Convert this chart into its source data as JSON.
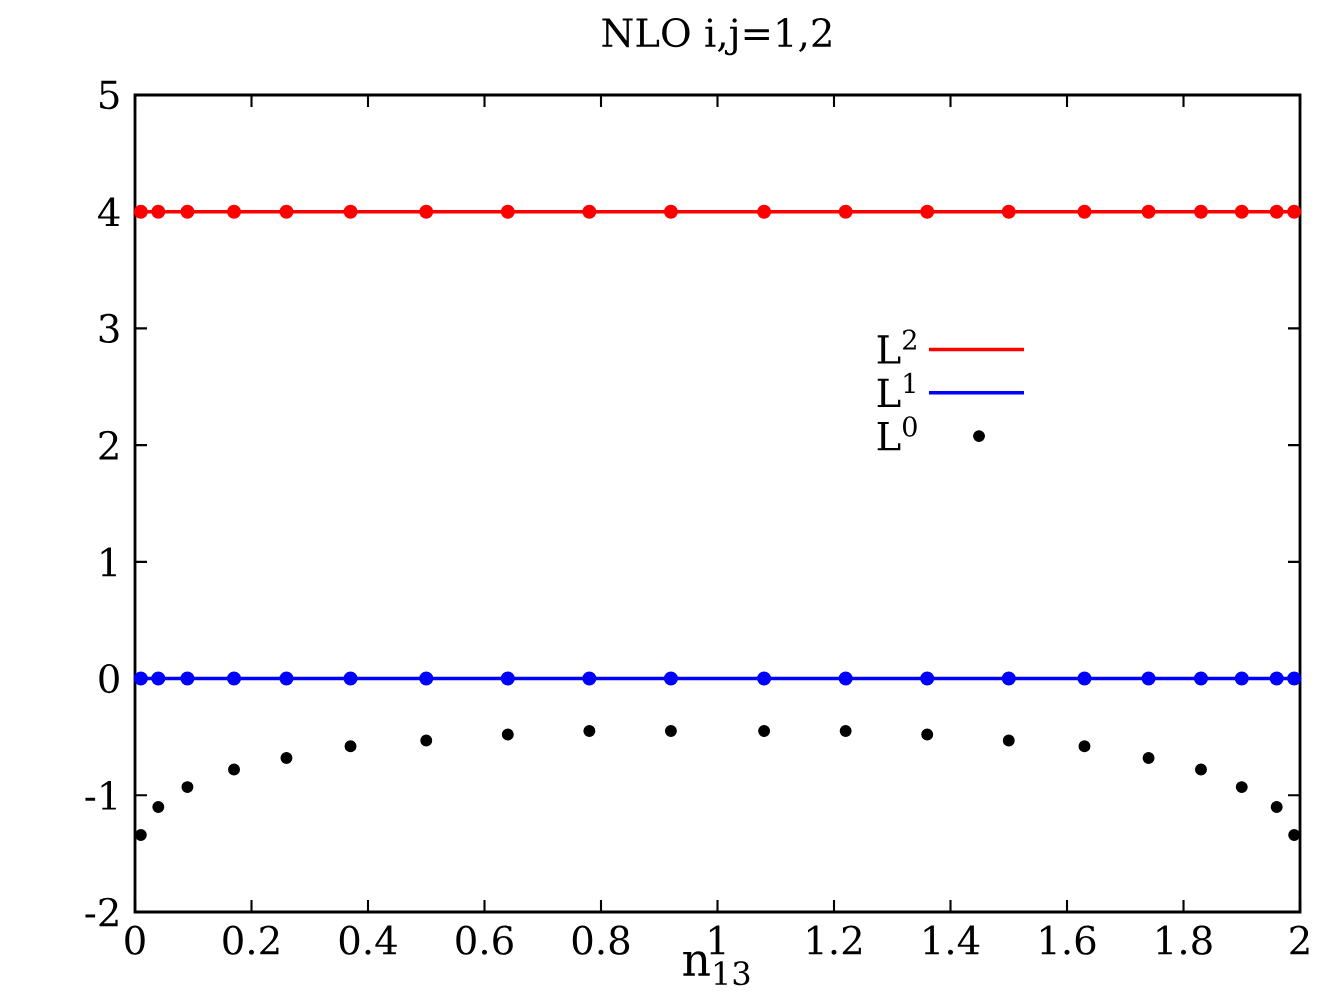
{
  "chart_data": {
    "type": "line",
    "title": "NLO i,j=1,2",
    "xlabel": "n$_{13}$",
    "xlim": [
      0,
      2
    ],
    "ylim": [
      -2,
      5
    ],
    "xticks": [
      0,
      0.2,
      0.4,
      0.6,
      0.8,
      1,
      1.2,
      1.4,
      1.6,
      1.8,
      2
    ],
    "yticks": [
      -2,
      -1,
      0,
      1,
      2,
      3,
      4,
      5
    ],
    "grid": false,
    "legend": "right",
    "series": [
      {
        "name": "L$^{2}$",
        "color": "#ff0000",
        "marker": "circle",
        "line_style": "solid",
        "x": [
          0.01,
          0.04,
          0.09,
          0.17,
          0.26,
          0.37,
          0.5,
          0.64,
          0.78,
          0.92,
          1.08,
          1.22,
          1.36,
          1.5,
          1.63,
          1.74,
          1.83,
          1.9,
          1.96,
          1.99
        ],
        "values": [
          4,
          4,
          4,
          4,
          4,
          4,
          4,
          4,
          4,
          4,
          4,
          4,
          4,
          4,
          4,
          4,
          4,
          4,
          4,
          4
        ]
      },
      {
        "name": "L$^{1}$",
        "color": "#0000ff",
        "marker": "circle",
        "line_style": "solid",
        "x": [
          0.01,
          0.04,
          0.09,
          0.17,
          0.26,
          0.37,
          0.5,
          0.64,
          0.78,
          0.92,
          1.08,
          1.22,
          1.36,
          1.5,
          1.63,
          1.74,
          1.83,
          1.9,
          1.96,
          1.99
        ],
        "values": [
          0,
          0,
          0,
          0,
          0,
          0,
          0,
          0,
          0,
          0,
          0,
          0,
          0,
          0,
          0,
          0,
          0,
          0,
          0,
          0
        ]
      },
      {
        "name": "L$^{0}$",
        "type": "scatter",
        "color": "#000000",
        "marker": "circle",
        "x": [
          0.01,
          0.04,
          0.09,
          0.17,
          0.26,
          0.37,
          0.5,
          0.64,
          0.78,
          0.92,
          1.08,
          1.22,
          1.36,
          1.5,
          1.63,
          1.74,
          1.83,
          1.9,
          1.96,
          1.99
        ],
        "values": [
          -1.34,
          -1.1,
          -0.93,
          -0.78,
          -0.68,
          -0.58,
          -0.53,
          -0.48,
          -0.45,
          -0.45,
          -0.45,
          -0.45,
          -0.48,
          -0.53,
          -0.58,
          -0.68,
          -0.78,
          -0.93,
          -1.1,
          -1.34
        ]
      }
    ]
  }
}
